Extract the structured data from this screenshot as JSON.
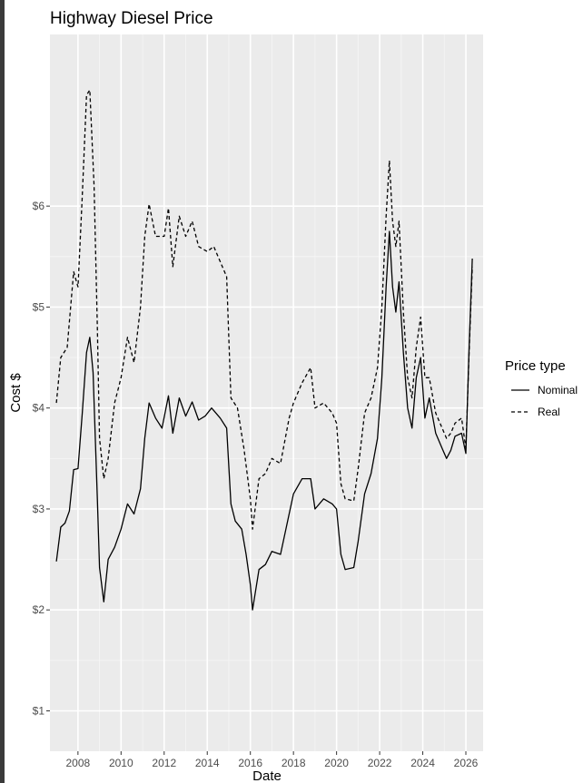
{
  "chart_data": {
    "type": "line",
    "title": "Highway Diesel Price",
    "xlabel": "Date",
    "ylabel": "Cost $",
    "xlim": [
      2006.7,
      2026.8
    ],
    "ylim": [
      0.6,
      7.7
    ],
    "x_ticks": [
      2008,
      2010,
      2012,
      2014,
      2016,
      2018,
      2020,
      2022,
      2024,
      2026
    ],
    "y_ticks": [
      1,
      2,
      3,
      4,
      5,
      6
    ],
    "y_tick_labels": [
      "$1",
      "$2",
      "$3",
      "$4",
      "$5",
      "$6"
    ],
    "grid": true,
    "legend": {
      "title": "Price type",
      "position": "right"
    },
    "series": [
      {
        "name": "Nominal",
        "line_style": "solid",
        "points": [
          [
            2007.0,
            2.48
          ],
          [
            2007.2,
            2.82
          ],
          [
            2007.4,
            2.86
          ],
          [
            2007.6,
            2.98
          ],
          [
            2007.8,
            3.39
          ],
          [
            2008.0,
            3.4
          ],
          [
            2008.2,
            3.95
          ],
          [
            2008.4,
            4.55
          ],
          [
            2008.55,
            4.7
          ],
          [
            2008.7,
            4.35
          ],
          [
            2008.9,
            3.1
          ],
          [
            2009.0,
            2.42
          ],
          [
            2009.2,
            2.08
          ],
          [
            2009.4,
            2.5
          ],
          [
            2009.7,
            2.62
          ],
          [
            2010.0,
            2.8
          ],
          [
            2010.3,
            3.05
          ],
          [
            2010.6,
            2.95
          ],
          [
            2010.9,
            3.2
          ],
          [
            2011.1,
            3.7
          ],
          [
            2011.3,
            4.05
          ],
          [
            2011.6,
            3.9
          ],
          [
            2011.9,
            3.8
          ],
          [
            2012.2,
            4.12
          ],
          [
            2012.4,
            3.75
          ],
          [
            2012.7,
            4.1
          ],
          [
            2013.0,
            3.92
          ],
          [
            2013.3,
            4.06
          ],
          [
            2013.6,
            3.88
          ],
          [
            2013.9,
            3.92
          ],
          [
            2014.2,
            4.0
          ],
          [
            2014.6,
            3.9
          ],
          [
            2014.9,
            3.8
          ],
          [
            2015.1,
            3.05
          ],
          [
            2015.3,
            2.88
          ],
          [
            2015.6,
            2.8
          ],
          [
            2015.8,
            2.55
          ],
          [
            2016.0,
            2.25
          ],
          [
            2016.1,
            2.0
          ],
          [
            2016.4,
            2.4
          ],
          [
            2016.7,
            2.45
          ],
          [
            2017.0,
            2.58
          ],
          [
            2017.4,
            2.55
          ],
          [
            2017.8,
            2.95
          ],
          [
            2018.0,
            3.15
          ],
          [
            2018.4,
            3.3
          ],
          [
            2018.8,
            3.3
          ],
          [
            2019.0,
            3.0
          ],
          [
            2019.4,
            3.1
          ],
          [
            2019.8,
            3.05
          ],
          [
            2020.0,
            3.0
          ],
          [
            2020.2,
            2.55
          ],
          [
            2020.4,
            2.4
          ],
          [
            2020.8,
            2.42
          ],
          [
            2021.0,
            2.68
          ],
          [
            2021.3,
            3.15
          ],
          [
            2021.6,
            3.35
          ],
          [
            2021.9,
            3.7
          ],
          [
            2022.1,
            4.3
          ],
          [
            2022.3,
            5.2
          ],
          [
            2022.45,
            5.75
          ],
          [
            2022.6,
            5.2
          ],
          [
            2022.75,
            4.95
          ],
          [
            2022.9,
            5.25
          ],
          [
            2023.1,
            4.55
          ],
          [
            2023.3,
            4.0
          ],
          [
            2023.5,
            3.8
          ],
          [
            2023.7,
            4.3
          ],
          [
            2023.9,
            4.5
          ],
          [
            2024.1,
            3.9
          ],
          [
            2024.3,
            4.1
          ],
          [
            2024.6,
            3.75
          ],
          [
            2024.9,
            3.6
          ],
          [
            2025.1,
            3.5
          ],
          [
            2025.3,
            3.58
          ],
          [
            2025.5,
            3.72
          ],
          [
            2025.8,
            3.75
          ],
          [
            2026.0,
            3.55
          ],
          [
            2026.15,
            4.6
          ],
          [
            2026.3,
            5.48
          ]
        ]
      },
      {
        "name": "Real",
        "line_style": "dashed",
        "points": [
          [
            2007.0,
            4.05
          ],
          [
            2007.2,
            4.5
          ],
          [
            2007.5,
            4.6
          ],
          [
            2007.8,
            5.35
          ],
          [
            2008.0,
            5.2
          ],
          [
            2008.2,
            6.1
          ],
          [
            2008.4,
            7.1
          ],
          [
            2008.55,
            7.15
          ],
          [
            2008.75,
            6.2
          ],
          [
            2008.9,
            4.8
          ],
          [
            2009.0,
            3.7
          ],
          [
            2009.2,
            3.3
          ],
          [
            2009.4,
            3.5
          ],
          [
            2009.7,
            4.05
          ],
          [
            2010.0,
            4.3
          ],
          [
            2010.3,
            4.7
          ],
          [
            2010.6,
            4.45
          ],
          [
            2010.9,
            5.0
          ],
          [
            2011.1,
            5.7
          ],
          [
            2011.3,
            6.02
          ],
          [
            2011.6,
            5.7
          ],
          [
            2012.0,
            5.7
          ],
          [
            2012.2,
            5.98
          ],
          [
            2012.4,
            5.4
          ],
          [
            2012.7,
            5.9
          ],
          [
            2013.0,
            5.7
          ],
          [
            2013.3,
            5.85
          ],
          [
            2013.6,
            5.6
          ],
          [
            2014.0,
            5.55
          ],
          [
            2014.3,
            5.6
          ],
          [
            2014.6,
            5.45
          ],
          [
            2014.9,
            5.3
          ],
          [
            2015.1,
            4.1
          ],
          [
            2015.4,
            4.0
          ],
          [
            2015.7,
            3.6
          ],
          [
            2016.0,
            3.1
          ],
          [
            2016.1,
            2.8
          ],
          [
            2016.4,
            3.3
          ],
          [
            2016.7,
            3.35
          ],
          [
            2017.0,
            3.5
          ],
          [
            2017.4,
            3.45
          ],
          [
            2017.8,
            3.9
          ],
          [
            2018.0,
            4.05
          ],
          [
            2018.4,
            4.25
          ],
          [
            2018.8,
            4.4
          ],
          [
            2019.0,
            4.0
          ],
          [
            2019.4,
            4.05
          ],
          [
            2019.8,
            3.95
          ],
          [
            2020.0,
            3.85
          ],
          [
            2020.2,
            3.25
          ],
          [
            2020.4,
            3.1
          ],
          [
            2020.8,
            3.08
          ],
          [
            2021.0,
            3.4
          ],
          [
            2021.3,
            3.95
          ],
          [
            2021.6,
            4.1
          ],
          [
            2021.9,
            4.4
          ],
          [
            2022.1,
            5.0
          ],
          [
            2022.3,
            5.9
          ],
          [
            2022.45,
            6.45
          ],
          [
            2022.6,
            5.85
          ],
          [
            2022.75,
            5.6
          ],
          [
            2022.9,
            5.85
          ],
          [
            2023.1,
            4.95
          ],
          [
            2023.3,
            4.3
          ],
          [
            2023.5,
            4.1
          ],
          [
            2023.7,
            4.6
          ],
          [
            2023.9,
            4.9
          ],
          [
            2024.1,
            4.3
          ],
          [
            2024.3,
            4.3
          ],
          [
            2024.6,
            3.95
          ],
          [
            2024.9,
            3.8
          ],
          [
            2025.1,
            3.7
          ],
          [
            2025.3,
            3.75
          ],
          [
            2025.5,
            3.85
          ],
          [
            2025.8,
            3.9
          ],
          [
            2026.0,
            3.6
          ],
          [
            2026.15,
            4.55
          ],
          [
            2026.3,
            5.4
          ]
        ]
      }
    ]
  }
}
